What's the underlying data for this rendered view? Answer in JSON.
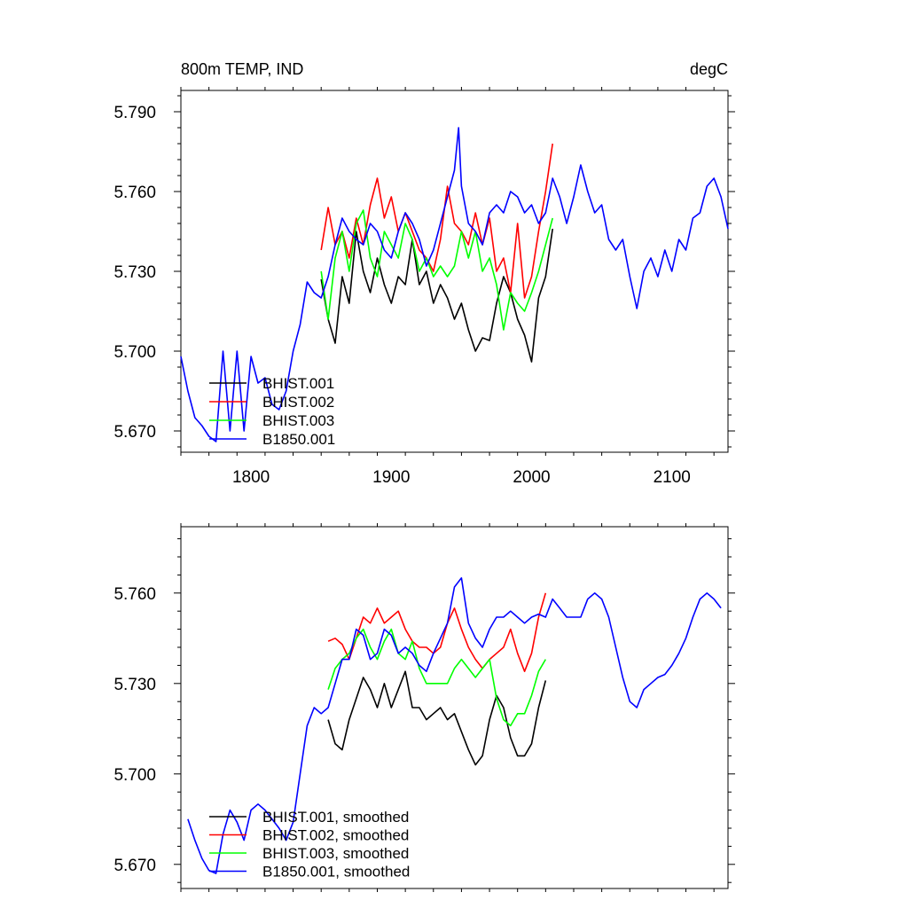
{
  "chart_data": [
    {
      "type": "line",
      "title": "800m TEMP, IND",
      "units": "degC",
      "xlim": [
        1750,
        2140
      ],
      "ylim": [
        5.662,
        5.798
      ],
      "x_ticks": [
        1800,
        1900,
        2000,
        2100
      ],
      "x_tick_labels": [
        "1800",
        "1900",
        "2000",
        "2100"
      ],
      "y_ticks": [
        5.67,
        5.7,
        5.73,
        5.76,
        5.79
      ],
      "y_tick_labels": [
        "5.670",
        "5.700",
        "5.730",
        "5.760",
        "5.790"
      ],
      "legend_position": "bottom-left",
      "series": [
        {
          "name": "BHIST.001",
          "color": "#000000",
          "x": [
            1850,
            1855,
            1860,
            1865,
            1870,
            1875,
            1880,
            1885,
            1890,
            1895,
            1900,
            1905,
            1910,
            1915,
            1920,
            1925,
            1930,
            1935,
            1940,
            1945,
            1950,
            1955,
            1960,
            1965,
            1970,
            1975,
            1980,
            1985,
            1990,
            1995,
            2000,
            2005,
            2010,
            2015
          ],
          "y": [
            5.727,
            5.712,
            5.703,
            5.728,
            5.718,
            5.745,
            5.73,
            5.722,
            5.735,
            5.725,
            5.718,
            5.728,
            5.725,
            5.742,
            5.725,
            5.73,
            5.718,
            5.725,
            5.72,
            5.712,
            5.718,
            5.708,
            5.7,
            5.705,
            5.704,
            5.718,
            5.728,
            5.722,
            5.712,
            5.706,
            5.696,
            5.72,
            5.728,
            5.746
          ]
        },
        {
          "name": "BHIST.002",
          "color": "#ff0000",
          "x": [
            1850,
            1855,
            1860,
            1865,
            1870,
            1875,
            1880,
            1885,
            1890,
            1895,
            1900,
            1905,
            1910,
            1915,
            1920,
            1925,
            1930,
            1935,
            1940,
            1945,
            1950,
            1955,
            1960,
            1965,
            1970,
            1975,
            1980,
            1985,
            1990,
            1995,
            2000,
            2005,
            2010,
            2015
          ],
          "y": [
            5.738,
            5.754,
            5.74,
            5.745,
            5.735,
            5.75,
            5.74,
            5.755,
            5.765,
            5.75,
            5.758,
            5.745,
            5.752,
            5.745,
            5.738,
            5.735,
            5.73,
            5.742,
            5.762,
            5.748,
            5.745,
            5.74,
            5.752,
            5.74,
            5.75,
            5.73,
            5.735,
            5.722,
            5.748,
            5.72,
            5.728,
            5.745,
            5.76,
            5.778
          ]
        },
        {
          "name": "BHIST.003",
          "color": "#00ff00",
          "x": [
            1850,
            1855,
            1860,
            1865,
            1870,
            1875,
            1880,
            1885,
            1890,
            1895,
            1900,
            1905,
            1910,
            1915,
            1920,
            1925,
            1930,
            1935,
            1940,
            1945,
            1950,
            1955,
            1960,
            1965,
            1970,
            1975,
            1980,
            1985,
            1990,
            1995,
            2000,
            2005,
            2010,
            2015
          ],
          "y": [
            5.73,
            5.712,
            5.735,
            5.745,
            5.73,
            5.748,
            5.753,
            5.735,
            5.728,
            5.745,
            5.74,
            5.735,
            5.748,
            5.742,
            5.73,
            5.735,
            5.728,
            5.732,
            5.728,
            5.732,
            5.745,
            5.735,
            5.745,
            5.73,
            5.735,
            5.725,
            5.708,
            5.722,
            5.718,
            5.715,
            5.722,
            5.73,
            5.74,
            5.75
          ]
        },
        {
          "name": "B1850.001",
          "color": "#0000ff",
          "x": [
            1750,
            1755,
            1760,
            1765,
            1770,
            1775,
            1780,
            1785,
            1790,
            1795,
            1800,
            1805,
            1810,
            1815,
            1820,
            1825,
            1830,
            1835,
            1840,
            1845,
            1850,
            1855,
            1860,
            1865,
            1870,
            1875,
            1880,
            1885,
            1890,
            1895,
            1900,
            1905,
            1910,
            1915,
            1920,
            1925,
            1930,
            1935,
            1940,
            1945,
            1948,
            1950,
            1955,
            1960,
            1965,
            1970,
            1975,
            1980,
            1985,
            1990,
            1995,
            2000,
            2005,
            2010,
            2015,
            2020,
            2025,
            2030,
            2035,
            2040,
            2045,
            2050,
            2055,
            2060,
            2065,
            2070,
            2075,
            2080,
            2085,
            2090,
            2095,
            2100,
            2105,
            2110,
            2115,
            2120,
            2125,
            2130,
            2135,
            2140
          ],
          "y": [
            5.698,
            5.685,
            5.675,
            5.672,
            5.668,
            5.666,
            5.7,
            5.67,
            5.7,
            5.67,
            5.698,
            5.688,
            5.69,
            5.68,
            5.678,
            5.685,
            5.7,
            5.71,
            5.726,
            5.722,
            5.72,
            5.728,
            5.74,
            5.75,
            5.745,
            5.742,
            5.74,
            5.748,
            5.745,
            5.738,
            5.735,
            5.745,
            5.752,
            5.748,
            5.742,
            5.732,
            5.738,
            5.748,
            5.758,
            5.768,
            5.784,
            5.762,
            5.748,
            5.745,
            5.74,
            5.752,
            5.755,
            5.752,
            5.76,
            5.758,
            5.752,
            5.755,
            5.748,
            5.752,
            5.765,
            5.758,
            5.748,
            5.758,
            5.77,
            5.76,
            5.752,
            5.755,
            5.742,
            5.738,
            5.742,
            5.728,
            5.716,
            5.73,
            5.735,
            5.728,
            5.738,
            5.73,
            5.742,
            5.738,
            5.75,
            5.752,
            5.762,
            5.765,
            5.758,
            5.746
          ]
        }
      ]
    },
    {
      "type": "line",
      "xlim": [
        1750,
        2140
      ],
      "ylim": [
        5.662,
        5.782
      ],
      "x_ticks": [
        1800,
        1900,
        2000,
        2100
      ],
      "y_ticks": [
        5.67,
        5.7,
        5.73,
        5.76
      ],
      "y_tick_labels": [
        "5.670",
        "5.700",
        "5.730",
        "5.760"
      ],
      "legend_position": "bottom-left",
      "series": [
        {
          "name": "BHIST.001, smoothed",
          "color": "#000000",
          "x": [
            1855,
            1860,
            1865,
            1870,
            1875,
            1880,
            1885,
            1890,
            1895,
            1900,
            1905,
            1910,
            1915,
            1920,
            1925,
            1930,
            1935,
            1940,
            1945,
            1950,
            1955,
            1960,
            1965,
            1970,
            1975,
            1980,
            1985,
            1990,
            1995,
            2000,
            2005,
            2010
          ],
          "y": [
            5.718,
            5.71,
            5.708,
            5.718,
            5.725,
            5.732,
            5.728,
            5.722,
            5.73,
            5.722,
            5.728,
            5.734,
            5.722,
            5.722,
            5.718,
            5.72,
            5.722,
            5.718,
            5.72,
            5.714,
            5.708,
            5.703,
            5.706,
            5.718,
            5.726,
            5.722,
            5.712,
            5.706,
            5.706,
            5.71,
            5.722,
            5.731
          ]
        },
        {
          "name": "BHIST.002, smoothed",
          "color": "#ff0000",
          "x": [
            1855,
            1860,
            1865,
            1870,
            1875,
            1880,
            1885,
            1890,
            1895,
            1900,
            1905,
            1910,
            1915,
            1920,
            1925,
            1930,
            1935,
            1940,
            1945,
            1950,
            1955,
            1960,
            1965,
            1970,
            1975,
            1980,
            1985,
            1990,
            1995,
            2000,
            2005,
            2010
          ],
          "y": [
            5.744,
            5.745,
            5.743,
            5.738,
            5.745,
            5.752,
            5.75,
            5.755,
            5.75,
            5.752,
            5.754,
            5.748,
            5.744,
            5.742,
            5.742,
            5.74,
            5.742,
            5.75,
            5.755,
            5.748,
            5.742,
            5.738,
            5.735,
            5.738,
            5.74,
            5.742,
            5.748,
            5.74,
            5.734,
            5.74,
            5.752,
            5.76
          ]
        },
        {
          "name": "BHIST.003, smoothed",
          "color": "#00ff00",
          "x": [
            1855,
            1860,
            1865,
            1870,
            1875,
            1880,
            1885,
            1890,
            1895,
            1900,
            1905,
            1910,
            1915,
            1920,
            1925,
            1930,
            1935,
            1940,
            1945,
            1950,
            1955,
            1960,
            1965,
            1970,
            1975,
            1980,
            1985,
            1990,
            1995,
            2000,
            2005,
            2010
          ],
          "y": [
            5.728,
            5.735,
            5.738,
            5.74,
            5.745,
            5.748,
            5.742,
            5.738,
            5.744,
            5.748,
            5.74,
            5.738,
            5.744,
            5.735,
            5.73,
            5.73,
            5.73,
            5.73,
            5.735,
            5.738,
            5.735,
            5.732,
            5.735,
            5.738,
            5.725,
            5.718,
            5.716,
            5.72,
            5.72,
            5.726,
            5.734,
            5.738
          ]
        },
        {
          "name": "B1850.001, smoothed",
          "color": "#0000ff",
          "x": [
            1755,
            1760,
            1765,
            1770,
            1775,
            1780,
            1785,
            1790,
            1795,
            1800,
            1805,
            1810,
            1815,
            1820,
            1825,
            1830,
            1835,
            1840,
            1845,
            1850,
            1855,
            1860,
            1865,
            1870,
            1875,
            1880,
            1885,
            1890,
            1895,
            1900,
            1905,
            1910,
            1915,
            1920,
            1925,
            1930,
            1935,
            1940,
            1945,
            1950,
            1955,
            1960,
            1965,
            1970,
            1975,
            1980,
            1985,
            1990,
            1995,
            2000,
            2005,
            2010,
            2015,
            2020,
            2025,
            2030,
            2035,
            2040,
            2045,
            2050,
            2055,
            2060,
            2065,
            2070,
            2075,
            2080,
            2085,
            2090,
            2095,
            2100,
            2105,
            2110,
            2115,
            2120,
            2125,
            2130,
            2135
          ],
          "y": [
            5.685,
            5.678,
            5.672,
            5.668,
            5.667,
            5.68,
            5.688,
            5.684,
            5.678,
            5.688,
            5.69,
            5.688,
            5.685,
            5.682,
            5.678,
            5.684,
            5.7,
            5.716,
            5.722,
            5.72,
            5.722,
            5.73,
            5.738,
            5.738,
            5.748,
            5.746,
            5.738,
            5.74,
            5.748,
            5.746,
            5.74,
            5.742,
            5.74,
            5.736,
            5.734,
            5.74,
            5.745,
            5.75,
            5.762,
            5.765,
            5.75,
            5.745,
            5.742,
            5.748,
            5.752,
            5.752,
            5.754,
            5.752,
            5.75,
            5.752,
            5.753,
            5.752,
            5.758,
            5.755,
            5.752,
            5.752,
            5.752,
            5.758,
            5.76,
            5.758,
            5.752,
            5.742,
            5.732,
            5.724,
            5.722,
            5.728,
            5.73,
            5.732,
            5.733,
            5.736,
            5.74,
            5.745,
            5.752,
            5.758,
            5.76,
            5.758,
            5.755
          ]
        }
      ]
    }
  ]
}
